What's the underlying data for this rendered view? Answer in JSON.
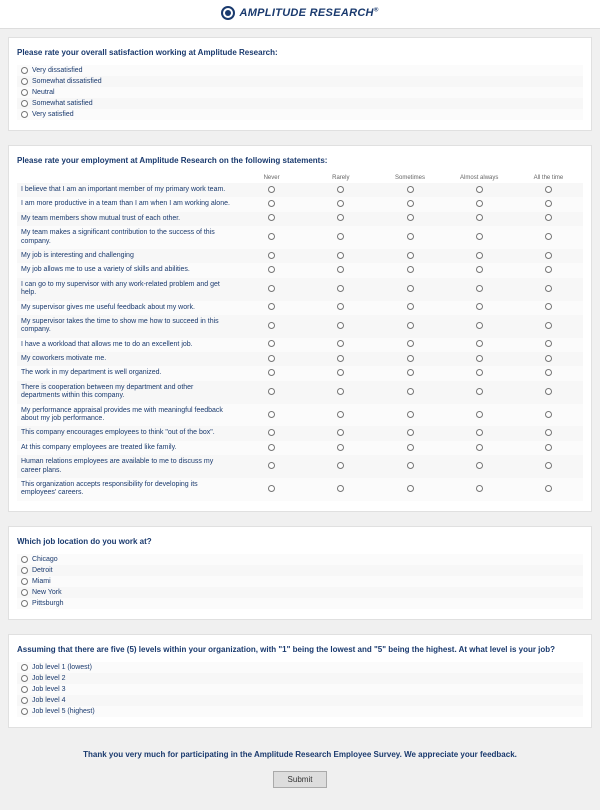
{
  "brand": {
    "name": "AMPLITUDE RESEARCH",
    "reg": "®"
  },
  "q1": {
    "title": "Please rate your overall satisfaction working at Amplitude Research:",
    "options": [
      "Very dissatisfied",
      "Somewhat dissatisfied",
      "Neutral",
      "Somewhat satisfied",
      "Very satisfied"
    ]
  },
  "q2": {
    "title": "Please rate your employment at Amplitude Research on the following statements:",
    "scale": [
      "Never",
      "Rarely",
      "Sometimes",
      "Almost always",
      "All the time"
    ],
    "statements": [
      "I believe that I am an important member of my primary work team.",
      "I am more productive in a team than I am when I am working alone.",
      "My team members show mutual trust of each other.",
      "My team makes a significant contribution to the success of this company.",
      "My job is interesting and challenging",
      "My job allows me to use a variety of skills and abilities.",
      "I can go to my supervisor with any work-related problem and get help.",
      "My supervisor gives me useful feedback about my work.",
      "My supervisor takes the time to show me how to succeed in this company.",
      "I have a workload that allows me to do an excellent job.",
      "My coworkers motivate me.",
      "The work in my department is well organized.",
      "There is cooperation between my department and other departments within this company.",
      "My performance appraisal provides me with meaningful feedback about my job performance.",
      "This company encourages employees to think \"out of the box\".",
      "At this company employees are treated like family.",
      "Human relations employees are available to me to discuss my career plans.",
      "This organization accepts responsibility for developing its employees' careers."
    ]
  },
  "q3": {
    "title": "Which job location do you work at?",
    "options": [
      "Chicago",
      "Detroit",
      "Miami",
      "New York",
      "Pittsburgh"
    ]
  },
  "q4": {
    "title": "Assuming that there are five (5) levels within your organization, with \"1\" being the lowest and \"5\" being the highest. At what level is your job?",
    "options": [
      "Job level 1 (lowest)",
      "Job level 2",
      "Job level 3",
      "Job level 4",
      "Job level 5 (highest)"
    ]
  },
  "thankyou": "Thank you very much for participating in the Amplitude Research Employee Survey.  We appreciate your feedback.",
  "submit": "Submit",
  "colors": {
    "brand": "#1a3a6e",
    "page_bg": "#f0f0f0",
    "panel_bg": "#ffffff"
  }
}
